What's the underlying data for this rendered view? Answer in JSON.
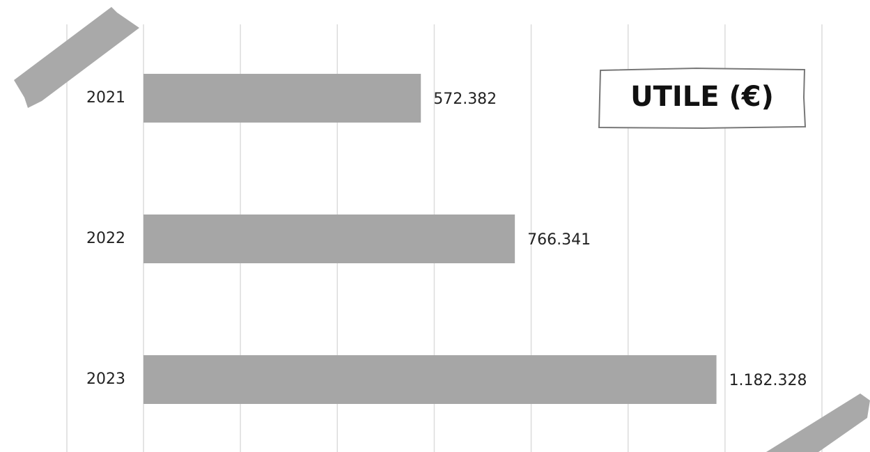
{
  "chart_data": {
    "type": "bar",
    "orientation": "horizontal",
    "title": "UTILE (€)",
    "categories": [
      "2021",
      "2022",
      "2023"
    ],
    "values": [
      572382,
      766341,
      1182328
    ],
    "value_labels": [
      "572.382",
      "766.341",
      "1.182.328"
    ],
    "color": "#a6a6a6",
    "xlim": [
      0,
      1400000
    ],
    "xticks": [
      0,
      200000,
      400000,
      600000,
      800000,
      1000000,
      1200000,
      1400000
    ],
    "grid": true
  }
}
